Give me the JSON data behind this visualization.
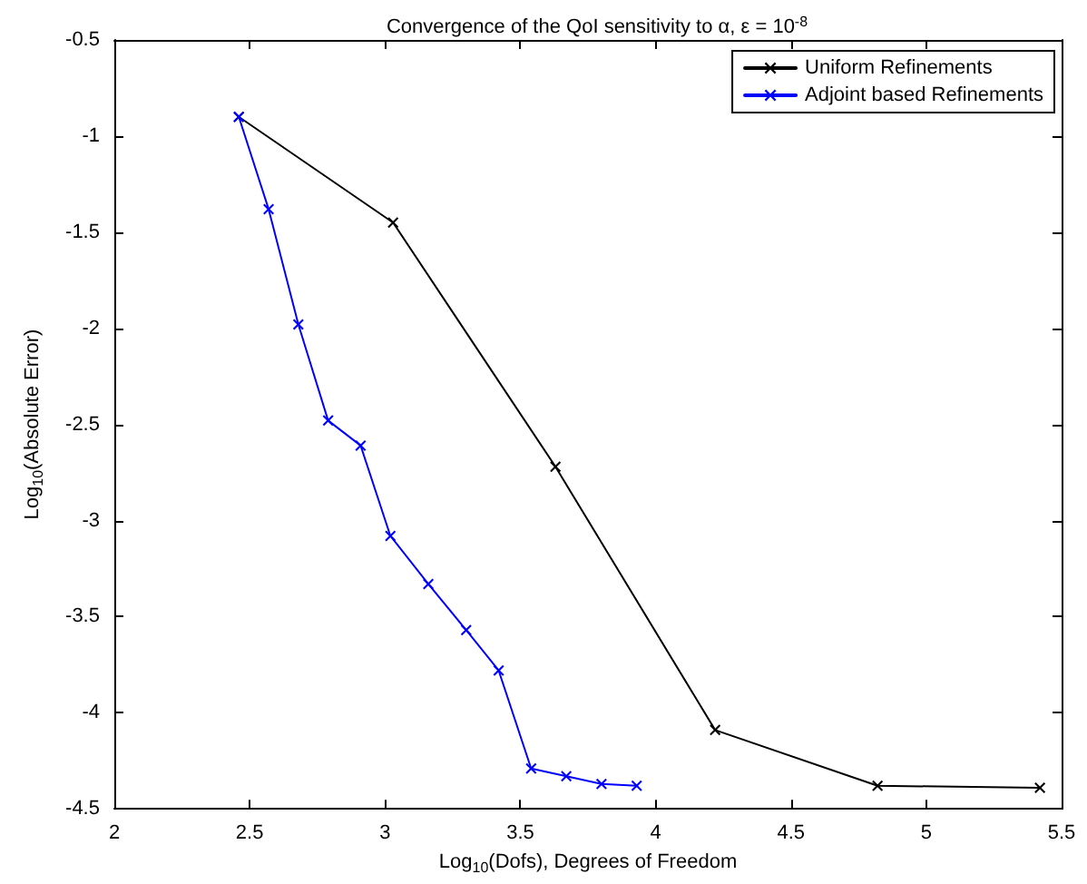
{
  "chart_data": {
    "type": "line",
    "title": "Convergence of the QoI sensitivity to α, ε = 10$^{-8}$",
    "xlabel": "Log$_{10}$(Dofs), Degrees of Freedom",
    "ylabel": "Log$_{10}$(Absolute Error)",
    "xlim": [
      2,
      5.5
    ],
    "xticks": [
      2,
      2.5,
      3,
      3.5,
      4,
      4.5,
      5,
      5.5
    ],
    "ylim": [
      -4.5,
      -0.5
    ],
    "yticks": [
      -4.5,
      -4,
      -3.5,
      -3,
      -2.5,
      -2,
      -1.5,
      -1,
      -0.5
    ],
    "grid": false,
    "legend": "top right",
    "marker": "cross",
    "line_style": "solid",
    "series": [
      {
        "name": "Uniform Refinements",
        "color": "#000000",
        "x": [
          2.46,
          3.03,
          3.63,
          4.22,
          4.82,
          5.42
        ],
        "values": [
          -0.9,
          -1.45,
          -2.72,
          -4.09,
          -4.38,
          -4.39
        ]
      },
      {
        "name": "Adjoint based Refinements",
        "color": "#0000ff",
        "x": [
          2.46,
          2.57,
          2.68,
          2.79,
          2.91,
          3.02,
          3.16,
          3.3,
          3.42,
          3.54,
          3.67,
          3.8,
          3.93
        ],
        "values": [
          -0.9,
          -1.38,
          -1.98,
          -2.48,
          -2.61,
          -3.08,
          -3.33,
          -3.57,
          -3.78,
          -4.29,
          -4.33,
          -4.37,
          -4.38
        ]
      }
    ]
  }
}
